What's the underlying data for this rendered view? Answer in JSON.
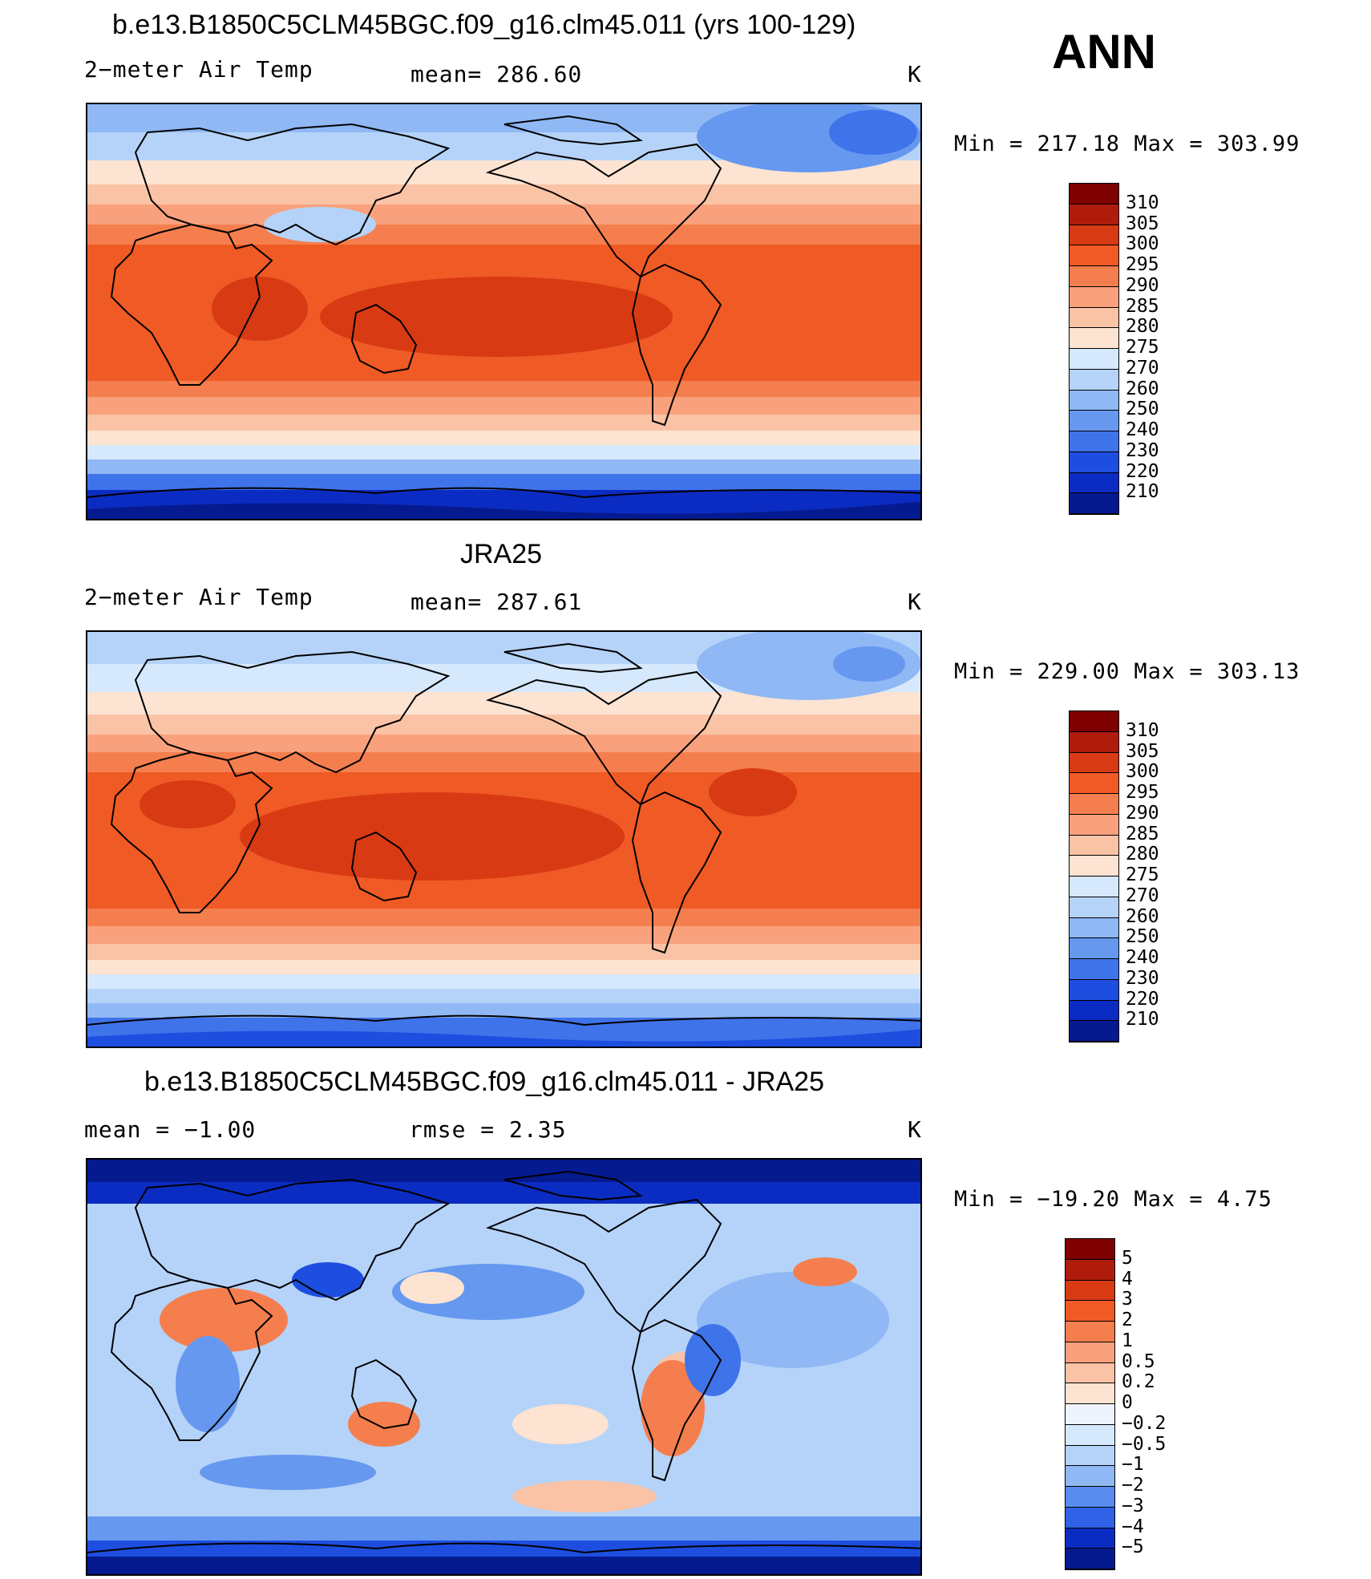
{
  "season": "ANN",
  "panels": [
    {
      "title": "b.e13.B1850C5CLM45BGC.f09_g16.clm45.011 (yrs 100-129)",
      "variable": "2−meter Air Temp",
      "stat1": "mean=  286.60",
      "stat2": "",
      "units": "K",
      "minmax": "Min  =  217.18  Max  =  303.99",
      "colorbar": {
        "labels": [
          "310",
          "305",
          "300",
          "295",
          "290",
          "285",
          "280",
          "275",
          "270",
          "260",
          "250",
          "240",
          "230",
          "220",
          "210"
        ],
        "colors": [
          "#7f0000",
          "#b01c0c",
          "#d83a14",
          "#f05a24",
          "#f57e4e",
          "#f9a17d",
          "#fbc3a6",
          "#fde3d1",
          "#d6e8fb",
          "#b5d3f8",
          "#8fb8f5",
          "#6698f0",
          "#3f73ea",
          "#1d4ee0",
          "#0b2cc2",
          "#061a8f"
        ]
      },
      "map_style": "model"
    },
    {
      "title": "JRA25",
      "variable": "2−meter Air Temp",
      "stat1": "mean=  287.61",
      "stat2": "",
      "units": "K",
      "minmax": "Min  =  229.00  Max  =  303.13",
      "colorbar": {
        "labels": [
          "310",
          "305",
          "300",
          "295",
          "290",
          "285",
          "280",
          "275",
          "270",
          "260",
          "250",
          "240",
          "230",
          "220",
          "210"
        ],
        "colors": [
          "#7f0000",
          "#b01c0c",
          "#d83a14",
          "#f05a24",
          "#f57e4e",
          "#f9a17d",
          "#fbc3a6",
          "#fde3d1",
          "#d6e8fb",
          "#b5d3f8",
          "#8fb8f5",
          "#6698f0",
          "#3f73ea",
          "#1d4ee0",
          "#0b2cc2",
          "#061a8f"
        ]
      },
      "map_style": "obs"
    },
    {
      "title": "b.e13.B1850C5CLM45BGC.f09_g16.clm45.011 - JRA25",
      "variable": "mean  =    −1.00",
      "stat1": "rmse  =     2.35",
      "stat2": "",
      "units": "K",
      "minmax": "Min  =  −19.20  Max  =     4.75",
      "colorbar": {
        "labels": [
          "5",
          "4",
          "3",
          "2",
          "1",
          "0.5",
          "0.2",
          "0",
          "−0.2",
          "−0.5",
          "−1",
          "−2",
          "−3",
          "−4",
          "−5"
        ],
        "colors": [
          "#7f0000",
          "#b01c0c",
          "#d83a14",
          "#f05a24",
          "#f57e4e",
          "#f9a17d",
          "#fbc3a6",
          "#fde3d1",
          "#eef4fd",
          "#d6e8fb",
          "#b5d3f8",
          "#8fb8f5",
          "#5a8cef",
          "#2f62e6",
          "#0b2cc2",
          "#061a8f"
        ]
      },
      "map_style": "diff"
    }
  ]
}
